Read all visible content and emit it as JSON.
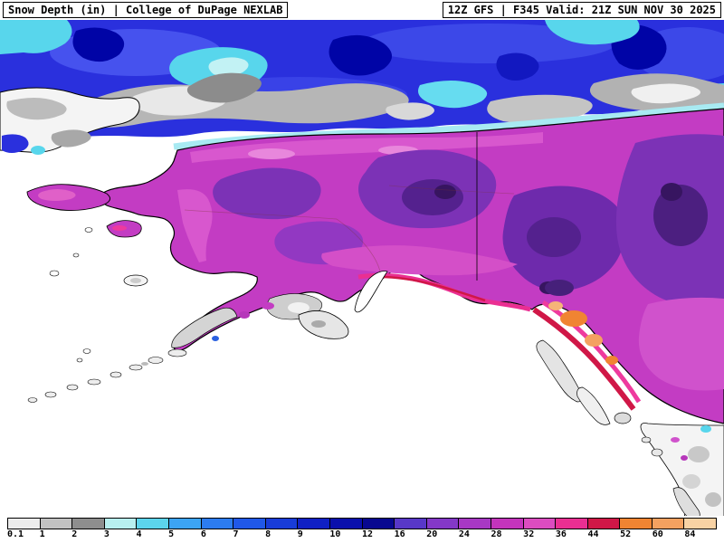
{
  "header": {
    "left": "Snow Depth (in) | College of DuPage NEXLAB",
    "right": "12Z GFS | F345 Valid: 21Z SUN NOV 30 2025"
  },
  "colorbar": {
    "units": "in",
    "ticks": [
      "0.1",
      "1",
      "2",
      "3",
      "4",
      "5",
      "6",
      "7",
      "8",
      "9",
      "10",
      "12",
      "16",
      "20",
      "24",
      "28",
      "32",
      "36",
      "44",
      "52",
      "60",
      "84"
    ],
    "colors": [
      "#ececec",
      "#c2c2c2",
      "#8e8e8e",
      "#b8f0f0",
      "#5cd4ec",
      "#3ca4f4",
      "#2c7cf0",
      "#2058e8",
      "#183cd8",
      "#1020c4",
      "#0a10ac",
      "#080890",
      "#5838c8",
      "#8438c8",
      "#a838c4",
      "#c434bc",
      "#dc4cc0",
      "#ea2f92",
      "#d01747",
      "#f08432",
      "#f4a160",
      "#f8d2a4"
    ]
  }
}
